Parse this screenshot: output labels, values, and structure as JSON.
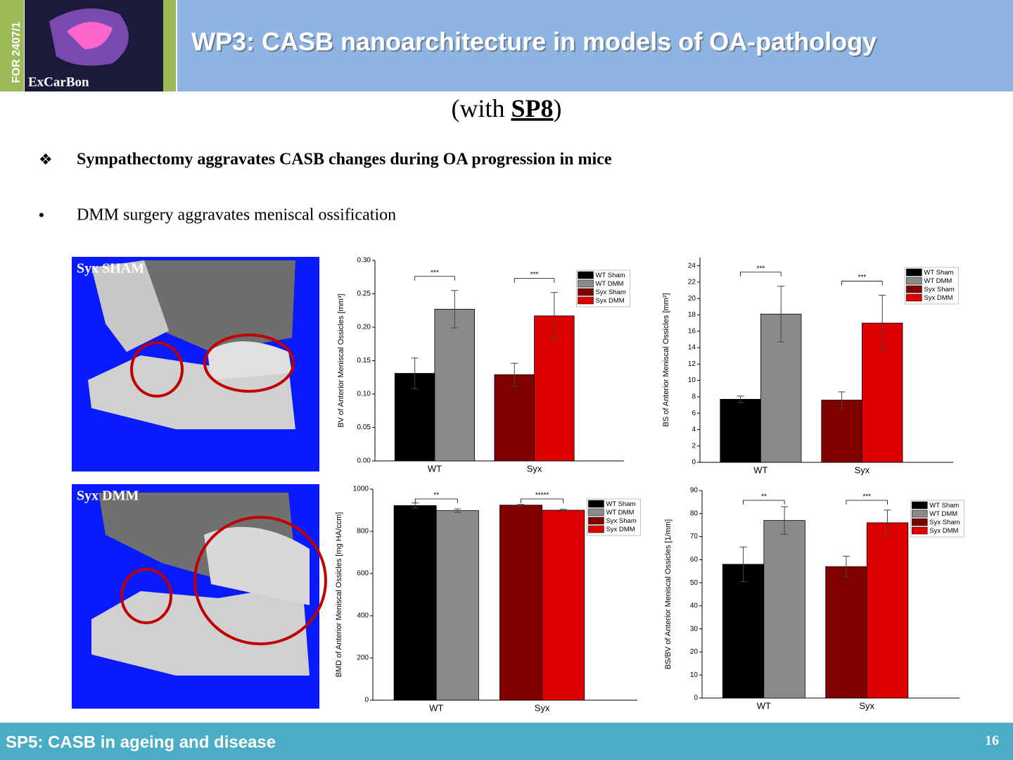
{
  "header": {
    "badge": "FOR 2407/1",
    "logo": "ExCarBon",
    "title": "WP3: CASB nanoarchitecture in models of OA-pathology"
  },
  "subtitle": {
    "before": "(with ",
    "bold": "SP8",
    "after": ")"
  },
  "bullets": [
    "Sympathectomy aggravates CASB changes during OA progression in mice",
    "DMM surgery aggravates meniscal ossification"
  ],
  "images": [
    {
      "label": "Syx SHAM"
    },
    {
      "label": "Syx DMM"
    }
  ],
  "chart_data": [
    {
      "type": "bar",
      "y_label": "BV of Anterior Meniscal Ossicles [mm³]",
      "categories": [
        "WT",
        "Syx"
      ],
      "series": [
        {
          "name": "WT Sham",
          "color": "#000000",
          "values": [
            0.131,
            null
          ],
          "errors": [
            0.023,
            null
          ]
        },
        {
          "name": "WT DMM",
          "color": "#8a8a8a",
          "values": [
            0.227,
            null
          ],
          "errors": [
            0.028,
            null
          ]
        },
        {
          "name": "Syx Sham",
          "color": "#800000",
          "values": [
            null,
            0.129
          ],
          "errors": [
            null,
            0.017
          ]
        },
        {
          "name": "Syx DMM",
          "color": "#dd0000",
          "values": [
            null,
            0.217
          ],
          "errors": [
            null,
            0.035
          ]
        }
      ],
      "annotations": [
        "***",
        "***"
      ],
      "ylim": [
        0,
        0.3
      ],
      "yticks": [
        {
          "value": 0,
          "label": "0.00"
        },
        0.05,
        {
          "value": 0.1,
          "label": "0.10"
        },
        0.15,
        {
          "value": 0.2,
          "label": "0.20"
        },
        0.25,
        {
          "value": 0.3,
          "label": "0.30"
        }
      ]
    },
    {
      "type": "bar",
      "y_label": "BS of Anterior Meniscal Ossicles [mm²]",
      "categories": [
        "WT",
        "Syx"
      ],
      "series": [
        {
          "name": "WT Sham",
          "color": "#000000",
          "values": [
            7.7,
            null
          ],
          "errors": [
            0.4,
            null
          ]
        },
        {
          "name": "WT DMM",
          "color": "#8a8a8a",
          "values": [
            18.1,
            null
          ],
          "errors": [
            3.4,
            null
          ]
        },
        {
          "name": "Syx Sham",
          "color": "#800000",
          "values": [
            null,
            7.6
          ],
          "errors": [
            null,
            1.0
          ]
        },
        {
          "name": "Syx DMM",
          "color": "#dd0000",
          "values": [
            null,
            17.0
          ],
          "errors": [
            null,
            3.4
          ]
        }
      ],
      "annotations": [
        "***",
        "***"
      ],
      "ylim": [
        0,
        25
      ],
      "yticks": [
        0,
        2,
        4,
        6,
        8,
        10,
        12,
        14,
        16,
        18,
        20,
        22,
        24
      ]
    },
    {
      "type": "bar",
      "y_label": "BMD of Anterior Meniscal Ossicles [mg HA/ccm]",
      "categories": [
        "WT",
        "Syx"
      ],
      "series": [
        {
          "name": "WT Sham",
          "color": "#000000",
          "values": [
            922,
            null
          ],
          "errors": [
            12,
            null
          ]
        },
        {
          "name": "WT DMM",
          "color": "#8a8a8a",
          "values": [
            898,
            null
          ],
          "errors": [
            8,
            null
          ]
        },
        {
          "name": "Syx Sham",
          "color": "#800000",
          "values": [
            null,
            924
          ],
          "errors": [
            null,
            3
          ]
        },
        {
          "name": "Syx DMM",
          "color": "#dd0000",
          "values": [
            null,
            900
          ],
          "errors": [
            null,
            4
          ]
        }
      ],
      "annotations": [
        "**",
        "*****"
      ],
      "ylim": [
        0,
        1000
      ],
      "yticks": [
        0,
        200,
        400,
        600,
        800,
        1000
      ]
    },
    {
      "type": "bar",
      "y_label": "BS/BV of Anterior Meniscal Ossicles [1/mm]",
      "categories": [
        "WT",
        "Syx"
      ],
      "series": [
        {
          "name": "WT Sham",
          "color": "#000000",
          "values": [
            58,
            null
          ],
          "errors": [
            7.5,
            null
          ]
        },
        {
          "name": "WT DMM",
          "color": "#8a8a8a",
          "values": [
            77,
            null
          ],
          "errors": [
            6,
            null
          ]
        },
        {
          "name": "Syx Sham",
          "color": "#800000",
          "values": [
            null,
            57
          ],
          "errors": [
            null,
            4.5
          ]
        },
        {
          "name": "Syx DMM",
          "color": "#dd0000",
          "values": [
            null,
            76
          ],
          "errors": [
            null,
            5.5
          ]
        }
      ],
      "annotations": [
        "**",
        "***"
      ],
      "ylim": [
        0,
        90
      ],
      "yticks": [
        0,
        10,
        20,
        30,
        40,
        50,
        60,
        70,
        80,
        90
      ]
    }
  ],
  "footer": {
    "text": "SP5: CASB in ageing and disease",
    "page": "16"
  }
}
